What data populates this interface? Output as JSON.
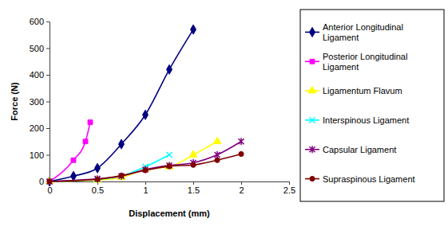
{
  "chart_data": {
    "type": "line",
    "xlabel": "Displacement (mm)",
    "ylabel": "Force (N)",
    "xlim": [
      0,
      2.5
    ],
    "ylim": [
      0,
      600
    ],
    "xticks": [
      0,
      0.5,
      1,
      1.5,
      2,
      2.5
    ],
    "yticks": [
      0,
      100,
      200,
      300,
      400,
      500,
      600
    ],
    "grid": false,
    "legend": "right",
    "series": [
      {
        "name": "Anterior Longitudinal Ligament",
        "color": "#000080",
        "marker": "diamond",
        "x": [
          0,
          0.25,
          0.5,
          0.75,
          1,
          1.25,
          1.5
        ],
        "values": [
          0,
          20,
          50,
          140,
          250,
          420,
          570
        ]
      },
      {
        "name": "Posterior Longitudinal Ligament",
        "color": "#ff00ff",
        "marker": "square",
        "x": [
          0,
          0.25,
          0.375,
          0.425
        ],
        "values": [
          0,
          80,
          150,
          222
        ]
      },
      {
        "name": "Ligamentum Flavum",
        "color": "#ffff00",
        "marker": "triangle",
        "x": [
          0,
          0.5,
          0.75,
          1,
          1.25,
          1.5,
          1.75
        ],
        "values": [
          0,
          5,
          15,
          45,
          55,
          100,
          150
        ]
      },
      {
        "name": "Interspinous Ligament",
        "color": "#00ffff",
        "marker": "x",
        "x": [
          0,
          0.5,
          0.75,
          1,
          1.25
        ],
        "values": [
          0,
          8,
          20,
          55,
          100
        ]
      },
      {
        "name": "Capsular Ligament",
        "color": "#800080",
        "marker": "star",
        "x": [
          0,
          0.5,
          0.75,
          1,
          1.25,
          1.5,
          1.75,
          2
        ],
        "values": [
          0,
          10,
          20,
          45,
          60,
          70,
          100,
          150
        ]
      },
      {
        "name": "Supraspinous Ligament",
        "color": "#800000",
        "marker": "circle",
        "x": [
          0,
          0.5,
          0.75,
          1,
          1.25,
          1.5,
          1.75,
          2
        ],
        "values": [
          0,
          8,
          22,
          42,
          57,
          62,
          80,
          103
        ]
      }
    ]
  }
}
